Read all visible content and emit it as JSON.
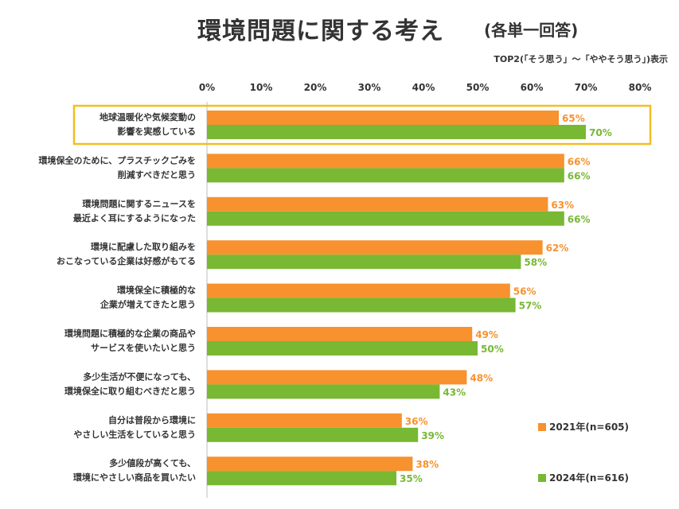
{
  "title": "環境問題に関する考え",
  "subtitle": "(各単一回答)",
  "note": "TOP2(「そう思う」〜「ややそう思う」)表示",
  "colors": {
    "series_2021": "#F7922E",
    "series_2024": "#78B833",
    "highlight": "#F2BE22",
    "text": "#333333",
    "grid": "#E0E0E0"
  },
  "legend": [
    {
      "label": "2021年(n=605)",
      "color": "#F7922E"
    },
    {
      "label": "2024年(n=616)",
      "color": "#78B833"
    }
  ],
  "chart_data": {
    "type": "bar",
    "orientation": "horizontal",
    "title": "環境問題に関する考え",
    "subtitle": "(各単一回答)",
    "xlim": [
      0,
      80
    ],
    "xticks": [
      "0%",
      "10%",
      "20%",
      "30%",
      "40%",
      "50%",
      "60%",
      "70%",
      "80%"
    ],
    "xtick_position": "top",
    "grid": false,
    "legend_position": "bottom-right",
    "highlighted_category_index": 0,
    "categories": [
      [
        "地球温暖化や気候変動の",
        "影響を実感している"
      ],
      [
        "環境保全のために、プラスチックごみを",
        "削減すべきだと思う"
      ],
      [
        "環境問題に関するニュースを",
        "最近よく耳にするようになった"
      ],
      [
        "環境に配慮した取り組みを",
        "おこなっている企業は好感がもてる"
      ],
      [
        "環境保全に積極的な",
        "企業が増えてきたと思う"
      ],
      [
        "環境問題に積極的な企業の商品や",
        "サービスを使いたいと思う"
      ],
      [
        "多少生活が不便になっても、",
        "環境保全に取り組むべきだと思う"
      ],
      [
        "自分は普段から環境に",
        "やさしい生活をしていると思う"
      ],
      [
        "多少値段が高くても、",
        "環境にやさしい商品を買いたい"
      ]
    ],
    "series": [
      {
        "name": "2021年(n=605)",
        "values": [
          65,
          66,
          63,
          62,
          56,
          49,
          48,
          36,
          38
        ],
        "labels": [
          "65%",
          "66%",
          "63%",
          "62%",
          "56%",
          "49%",
          "48%",
          "36%",
          "38%"
        ]
      },
      {
        "name": "2024年(n=616)",
        "values": [
          70,
          66,
          66,
          58,
          57,
          50,
          43,
          39,
          35
        ],
        "labels": [
          "70%",
          "66%",
          "66%",
          "58%",
          "57%",
          "50%",
          "43%",
          "39%",
          "35%"
        ]
      }
    ]
  }
}
